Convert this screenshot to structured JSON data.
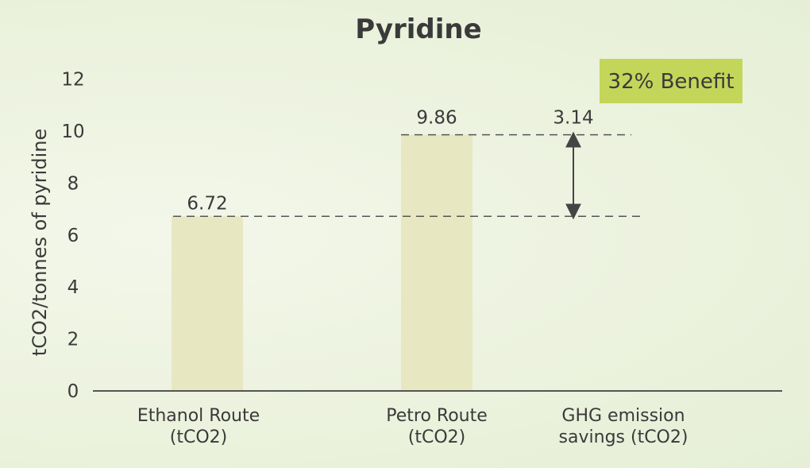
{
  "chart_data": {
    "type": "bar",
    "title": "Pyridine",
    "ylabel": "tCO2/tonnes of pyridine",
    "xlabel": "",
    "ylim": [
      0,
      12
    ],
    "yticks": [
      0,
      2,
      4,
      6,
      8,
      10,
      12
    ],
    "grid": false,
    "categories": [
      [
        "Ethanol Route",
        "(tCO2)"
      ],
      [
        "Petro Route",
        "(tCO2)"
      ],
      [
        "GHG emission",
        "savings (tCO2)"
      ]
    ],
    "values": [
      6.72,
      9.86,
      3.14
    ],
    "data_labels": [
      "6.72",
      "9.86",
      "3.14"
    ],
    "badge": "32% Benefit",
    "colors": {
      "bar": "#e7e8c2",
      "badge": "#c3d65a",
      "text": "#3a3a3a",
      "axis": "#555555",
      "dash": "#555555"
    }
  }
}
